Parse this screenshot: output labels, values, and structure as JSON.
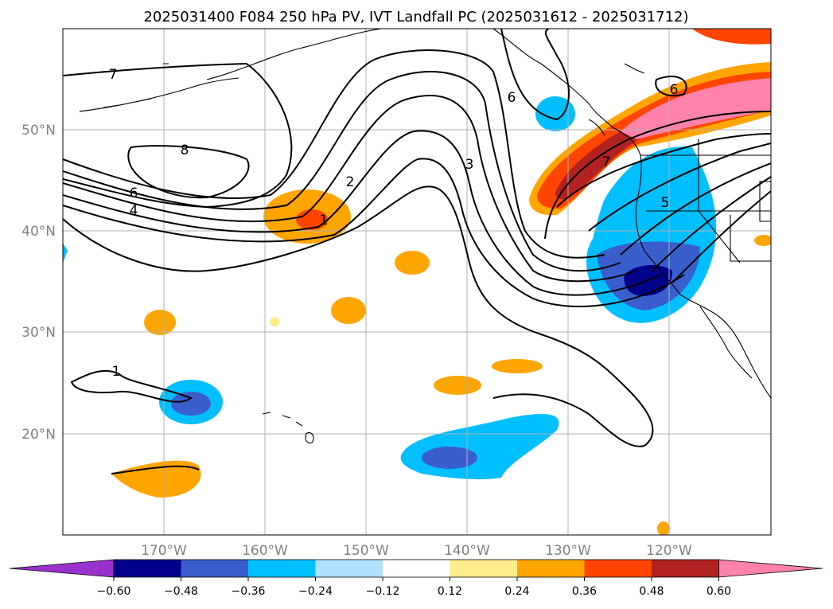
{
  "title": "2025031400 F084 250 hPa PV, IVT Landfall PC (2025031612 - 2025031712)",
  "map": {
    "lon_ticks": [
      "170°W",
      "160°W",
      "150°W",
      "140°W",
      "130°W",
      "120°W"
    ],
    "lat_ticks": [
      "50°N",
      "40°N",
      "30°N",
      "20°N"
    ],
    "lon_range": [
      -180,
      -110
    ],
    "lat_range": [
      10,
      60
    ],
    "gridlines": true
  },
  "colorbar": {
    "tick_labels": [
      "−0.60",
      "−0.48",
      "−0.36",
      "−0.24",
      "−0.12",
      "0.12",
      "0.24",
      "0.36",
      "0.48",
      "0.60"
    ],
    "colors": [
      "#9932cc",
      "#00008b",
      "#3a5fcd",
      "#00bfff",
      "#b0e2ff",
      "#ffffff",
      "#ffec8b",
      "#ffa500",
      "#ff4500",
      "#b22222",
      "#ff82ab"
    ],
    "extend": "both"
  },
  "contour_labels": [
    "7",
    "8",
    "6",
    "4",
    "2",
    "1",
    "3",
    "6",
    "7",
    "6",
    "5",
    "1"
  ],
  "colors": {
    "tick_text": "#808080",
    "grid": "#b0b0b0",
    "contour": "#000000"
  }
}
